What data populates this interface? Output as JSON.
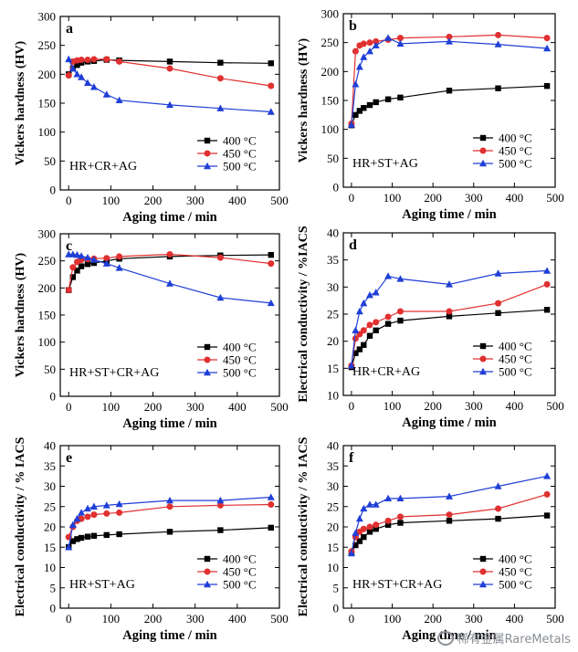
{
  "chart_data": [
    {
      "type": "line",
      "panel": "a",
      "tag": "HR+CR+AG",
      "xlabel": "Aging time / min",
      "ylabel": "Vickers hardness (HV)",
      "xlim": [
        -20,
        500
      ],
      "ylim": [
        0,
        300
      ],
      "xticks": [
        0,
        100,
        200,
        300,
        400,
        500
      ],
      "yticks": [
        0,
        50,
        100,
        150,
        200,
        250,
        300
      ],
      "legend_position": "bottom-right",
      "grid": false,
      "series": [
        {
          "name": "400 °C",
          "color": "#000000",
          "marker": "square",
          "x": [
            0,
            10,
            20,
            30,
            45,
            60,
            90,
            120,
            240,
            360,
            480
          ],
          "y": [
            200,
            210,
            216,
            220,
            222,
            223,
            225,
            224,
            222,
            220,
            219
          ]
        },
        {
          "name": "450 °C",
          "color": "#e03030",
          "marker": "circle",
          "x": [
            0,
            10,
            20,
            30,
            45,
            60,
            90,
            120,
            240,
            360,
            480
          ],
          "y": [
            198,
            222,
            224,
            225,
            225,
            226,
            226,
            222,
            210,
            193,
            180
          ]
        },
        {
          "name": "500 °C",
          "color": "#1f3fd6",
          "marker": "triangle",
          "x": [
            0,
            10,
            20,
            30,
            45,
            60,
            90,
            120,
            240,
            360,
            480
          ],
          "y": [
            226,
            210,
            200,
            195,
            185,
            178,
            165,
            155,
            147,
            141,
            135
          ]
        }
      ]
    },
    {
      "type": "line",
      "panel": "b",
      "tag": "HR+ST+AG",
      "xlabel": "Aging time / min",
      "ylabel": "Vickers hardness (HV)",
      "xlim": [
        -20,
        500
      ],
      "ylim": [
        0,
        300
      ],
      "xticks": [
        0,
        100,
        200,
        300,
        400,
        500
      ],
      "yticks": [
        0,
        50,
        100,
        150,
        200,
        250,
        300
      ],
      "legend_position": "bottom-right",
      "grid": false,
      "series": [
        {
          "name": "400 °C",
          "color": "#000000",
          "marker": "square",
          "x": [
            0,
            10,
            20,
            30,
            45,
            60,
            90,
            120,
            240,
            360,
            480
          ],
          "y": [
            107,
            125,
            132,
            137,
            142,
            147,
            152,
            155,
            167,
            171,
            175
          ]
        },
        {
          "name": "450 °C",
          "color": "#e03030",
          "marker": "circle",
          "x": [
            0,
            10,
            20,
            30,
            45,
            60,
            90,
            120,
            240,
            360,
            480
          ],
          "y": [
            110,
            235,
            245,
            248,
            250,
            252,
            255,
            258,
            260,
            263,
            258
          ]
        },
        {
          "name": "500 °C",
          "color": "#1f3fd6",
          "marker": "triangle",
          "x": [
            0,
            10,
            20,
            30,
            45,
            60,
            90,
            120,
            240,
            360,
            480
          ],
          "y": [
            108,
            178,
            208,
            225,
            235,
            245,
            258,
            248,
            252,
            247,
            240
          ]
        }
      ]
    },
    {
      "type": "line",
      "panel": "c",
      "tag": "HR+ST+CR+AG",
      "xlabel": "Aging time / min",
      "ylabel": "Vickers hardness (HV)",
      "xlim": [
        -20,
        500
      ],
      "ylim": [
        0,
        300
      ],
      "xticks": [
        0,
        100,
        200,
        300,
        400,
        500
      ],
      "yticks": [
        0,
        50,
        100,
        150,
        200,
        250,
        300
      ],
      "legend_position": "bottom-right",
      "grid": false,
      "series": [
        {
          "name": "400 °C",
          "color": "#000000",
          "marker": "square",
          "x": [
            0,
            10,
            20,
            30,
            45,
            60,
            90,
            120,
            240,
            360,
            480
          ],
          "y": [
            196,
            220,
            232,
            240,
            244,
            246,
            250,
            254,
            258,
            260,
            261
          ]
        },
        {
          "name": "450 °C",
          "color": "#e03030",
          "marker": "circle",
          "x": [
            0,
            10,
            20,
            30,
            45,
            60,
            90,
            120,
            240,
            360,
            480
          ],
          "y": [
            196,
            238,
            248,
            252,
            253,
            254,
            255,
            258,
            262,
            256,
            245
          ]
        },
        {
          "name": "500 °C",
          "color": "#1f3fd6",
          "marker": "triangle",
          "x": [
            0,
            10,
            20,
            30,
            45,
            60,
            90,
            120,
            240,
            360,
            480
          ],
          "y": [
            262,
            262,
            261,
            259,
            256,
            252,
            245,
            237,
            208,
            182,
            172
          ]
        }
      ]
    },
    {
      "type": "line",
      "panel": "d",
      "tag": "HR+CR+AG",
      "xlabel": "Aging time / min",
      "ylabel": "Electrical conductivity / %IACS",
      "xlim": [
        -20,
        500
      ],
      "ylim": [
        10,
        40
      ],
      "xticks": [
        0,
        100,
        200,
        300,
        400,
        500
      ],
      "yticks": [
        10,
        15,
        20,
        25,
        30,
        35,
        40
      ],
      "legend_position": "bottom-right",
      "grid": false,
      "series": [
        {
          "name": "400 °C",
          "color": "#000000",
          "marker": "square",
          "x": [
            0,
            10,
            20,
            30,
            45,
            60,
            90,
            120,
            240,
            360,
            480
          ],
          "y": [
            15.2,
            17.8,
            18.5,
            19.3,
            21.0,
            22.0,
            23.2,
            23.8,
            24.6,
            25.2,
            25.8
          ]
        },
        {
          "name": "450 °C",
          "color": "#e03030",
          "marker": "circle",
          "x": [
            0,
            10,
            20,
            30,
            45,
            60,
            90,
            120,
            240,
            360,
            480
          ],
          "y": [
            15.5,
            20.5,
            21.3,
            22.0,
            23.0,
            23.5,
            24.5,
            25.5,
            25.5,
            27.0,
            30.5
          ]
        },
        {
          "name": "500 °C",
          "color": "#1f3fd6",
          "marker": "triangle",
          "x": [
            0,
            10,
            20,
            30,
            45,
            60,
            90,
            120,
            240,
            360,
            480
          ],
          "y": [
            15.5,
            22.0,
            25.5,
            27.0,
            28.5,
            29.0,
            32.0,
            31.5,
            30.5,
            32.5,
            33.0
          ]
        }
      ]
    },
    {
      "type": "line",
      "panel": "e",
      "tag": "HR+ST+AG",
      "xlabel": "Aging time / min",
      "ylabel": "Electrical conductivity / % IACS",
      "xlim": [
        -20,
        500
      ],
      "ylim": [
        0,
        40
      ],
      "xticks": [
        0,
        100,
        200,
        300,
        400,
        500
      ],
      "yticks": [
        0,
        5,
        10,
        15,
        20,
        25,
        30,
        35,
        40
      ],
      "legend_position": "bottom-right",
      "grid": false,
      "series": [
        {
          "name": "400 °C",
          "color": "#000000",
          "marker": "square",
          "x": [
            0,
            10,
            20,
            30,
            45,
            60,
            90,
            120,
            240,
            360,
            480
          ],
          "y": [
            15.0,
            16.5,
            17.0,
            17.3,
            17.6,
            17.8,
            18.0,
            18.2,
            18.8,
            19.2,
            19.8
          ]
        },
        {
          "name": "450 °C",
          "color": "#e03030",
          "marker": "circle",
          "x": [
            0,
            10,
            20,
            30,
            45,
            60,
            90,
            120,
            240,
            360,
            480
          ],
          "y": [
            17.5,
            20.0,
            21.5,
            22.0,
            22.5,
            23.0,
            23.3,
            23.5,
            25.0,
            25.3,
            25.5
          ]
        },
        {
          "name": "500 °C",
          "color": "#1f3fd6",
          "marker": "triangle",
          "x": [
            0,
            10,
            20,
            30,
            45,
            60,
            90,
            120,
            240,
            360,
            480
          ],
          "y": [
            15.0,
            20.5,
            22.0,
            23.5,
            24.5,
            25.0,
            25.3,
            25.6,
            26.5,
            26.5,
            27.3
          ]
        }
      ]
    },
    {
      "type": "line",
      "panel": "f",
      "tag": "HR+ST+CR+AG",
      "xlabel": "Aging time / min",
      "ylabel": "Electrical conductivity / % IACS",
      "xlim": [
        -20,
        500
      ],
      "ylim": [
        0,
        40
      ],
      "xticks": [
        0,
        100,
        200,
        300,
        400,
        500
      ],
      "yticks": [
        0,
        5,
        10,
        15,
        20,
        25,
        30,
        35,
        40
      ],
      "legend_position": "bottom-right",
      "grid": false,
      "series": [
        {
          "name": "400 °C",
          "color": "#000000",
          "marker": "square",
          "x": [
            0,
            10,
            20,
            30,
            45,
            60,
            90,
            120,
            240,
            360,
            480
          ],
          "y": [
            13.5,
            15.5,
            16.5,
            17.5,
            18.8,
            19.5,
            20.5,
            21.0,
            21.5,
            22.0,
            22.8
          ]
        },
        {
          "name": "450 °C",
          "color": "#e03030",
          "marker": "circle",
          "x": [
            0,
            10,
            20,
            30,
            45,
            60,
            90,
            120,
            240,
            360,
            480
          ],
          "y": [
            14.0,
            17.5,
            18.8,
            19.5,
            20.0,
            20.5,
            21.5,
            22.5,
            23.0,
            24.5,
            28.0
          ]
        },
        {
          "name": "500 °C",
          "color": "#1f3fd6",
          "marker": "triangle",
          "x": [
            0,
            10,
            20,
            30,
            45,
            60,
            90,
            120,
            240,
            360,
            480
          ],
          "y": [
            13.5,
            18.5,
            22.0,
            24.5,
            25.5,
            25.5,
            27.0,
            27.0,
            27.5,
            30.0,
            32.5
          ]
        }
      ]
    }
  ],
  "watermark": {
    "text": "稀有金属RareMetals"
  }
}
